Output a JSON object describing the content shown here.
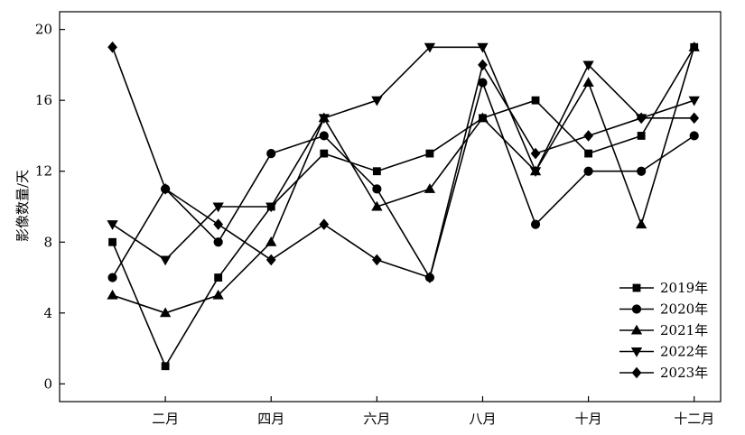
{
  "chart_data": {
    "type": "line",
    "title": "",
    "xlabel": "",
    "ylabel": "影像数量/天",
    "x": [
      1,
      2,
      3,
      4,
      5,
      6,
      7,
      8,
      9,
      10,
      11,
      12
    ],
    "xlim": [
      0,
      12.5
    ],
    "ylim": [
      -1,
      21
    ],
    "xticks": [
      {
        "x": 2,
        "label": "二月"
      },
      {
        "x": 4,
        "label": "四月"
      },
      {
        "x": 6,
        "label": "六月"
      },
      {
        "x": 8,
        "label": "八月"
      },
      {
        "x": 10,
        "label": "十月"
      },
      {
        "x": 12,
        "label": "十二月"
      }
    ],
    "yticks": [
      0,
      4,
      8,
      12,
      16,
      20
    ],
    "grid": false,
    "legend_position": "bottom-right",
    "series": [
      {
        "name": "2019年",
        "marker": "square",
        "values": [
          8,
          1,
          6,
          10,
          13,
          12,
          13,
          15,
          16,
          13,
          14,
          19
        ]
      },
      {
        "name": "2020年",
        "marker": "circle",
        "values": [
          6,
          11,
          8,
          13,
          14,
          11,
          6,
          17,
          9,
          12,
          12,
          14
        ]
      },
      {
        "name": "2021年",
        "marker": "triangle-up",
        "values": [
          5,
          4,
          5,
          8,
          15,
          10,
          11,
          15,
          12,
          17,
          9,
          19
        ]
      },
      {
        "name": "2022年",
        "marker": "triangle-down",
        "values": [
          9,
          7,
          10,
          10,
          15,
          16,
          19,
          19,
          12,
          18,
          15,
          16
        ]
      },
      {
        "name": "2023年",
        "marker": "diamond",
        "values": [
          19,
          11,
          9,
          7,
          9,
          7,
          6,
          18,
          13,
          14,
          15,
          15
        ]
      }
    ],
    "colors": {
      "line": "#000000",
      "background": "#ffffff"
    }
  }
}
